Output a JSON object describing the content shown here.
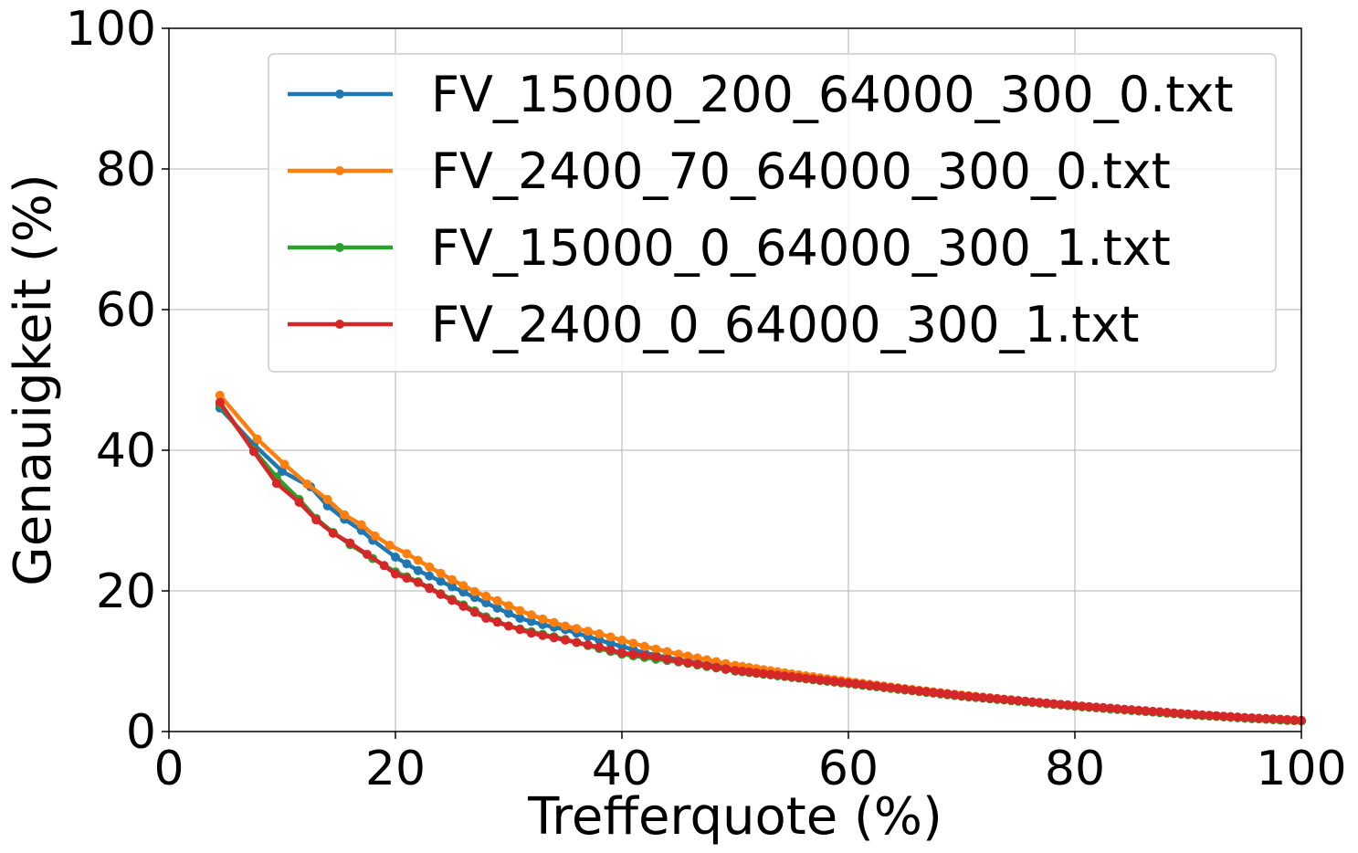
{
  "chart_data": {
    "type": "line",
    "title": "",
    "xlabel": "Trefferquote (%)",
    "ylabel": "Genauigkeit (%)",
    "xlim": [
      0,
      100
    ],
    "ylim": [
      0,
      100
    ],
    "xticks": [
      0,
      20,
      40,
      60,
      80,
      100
    ],
    "yticks": [
      0,
      20,
      40,
      60,
      80,
      100
    ],
    "xtick_labels": [
      "0",
      "20",
      "40",
      "60",
      "80",
      "100"
    ],
    "ytick_labels": [
      "0",
      "20",
      "40",
      "60",
      "80",
      "100"
    ],
    "grid": true,
    "legend_position": "top-right",
    "series": [
      {
        "name": "FV_15000_200_64000_300_0.txt",
        "color": "#1f77b4",
        "anchors": [
          [
            4.5,
            46.0
          ],
          [
            7.5,
            40.8
          ],
          [
            10,
            37.0
          ],
          [
            12.5,
            34.8
          ],
          [
            14,
            32.1
          ],
          [
            15.5,
            30.2
          ],
          [
            17,
            28.6
          ],
          [
            18,
            27.2
          ],
          [
            20,
            24.8
          ],
          [
            22,
            22.9
          ],
          [
            25,
            20.6
          ],
          [
            28,
            18.3
          ],
          [
            30,
            16.8
          ],
          [
            31,
            16.1
          ],
          [
            33,
            15.2
          ],
          [
            35,
            14.5
          ],
          [
            38,
            13.0
          ],
          [
            40,
            12.1
          ],
          [
            42,
            11.2
          ],
          [
            45,
            10.2
          ],
          [
            50,
            8.9
          ],
          [
            55,
            8.0
          ],
          [
            60,
            7.0
          ],
          [
            65,
            6.0
          ],
          [
            70,
            5.1
          ],
          [
            75,
            4.4
          ],
          [
            80,
            3.6
          ],
          [
            85,
            3.0
          ],
          [
            90,
            2.4
          ],
          [
            95,
            1.9
          ],
          [
            100,
            1.5
          ]
        ]
      },
      {
        "name": "FV_2400_70_64000_300_0.txt",
        "color": "#ff7f0e",
        "anchors": [
          [
            4.5,
            47.8
          ],
          [
            7.8,
            41.6
          ],
          [
            10.2,
            38.0
          ],
          [
            12.2,
            35.2
          ],
          [
            14,
            33.0
          ],
          [
            15.5,
            30.8
          ],
          [
            17,
            29.4
          ],
          [
            18.2,
            27.8
          ],
          [
            19.5,
            26.5
          ],
          [
            21,
            25.3
          ],
          [
            23,
            23.4
          ],
          [
            25,
            21.6
          ],
          [
            27,
            19.9
          ],
          [
            29,
            18.6
          ],
          [
            31,
            17.2
          ],
          [
            33,
            16.0
          ],
          [
            35,
            15.0
          ],
          [
            38,
            13.9
          ],
          [
            40,
            13.0
          ],
          [
            42,
            12.1
          ],
          [
            45,
            11.0
          ],
          [
            50,
            9.4
          ],
          [
            55,
            8.2
          ],
          [
            60,
            7.1
          ],
          [
            65,
            6.1
          ],
          [
            70,
            5.2
          ],
          [
            75,
            4.4
          ],
          [
            80,
            3.6
          ],
          [
            85,
            3.0
          ],
          [
            90,
            2.4
          ],
          [
            95,
            1.9
          ],
          [
            100,
            1.5
          ]
        ]
      },
      {
        "name": "FV_15000_0_64000_300_1.txt",
        "color": "#2ca02c",
        "anchors": [
          [
            4.5,
            46.5
          ],
          [
            7.5,
            40.0
          ],
          [
            9.5,
            36.2
          ],
          [
            11.5,
            33.0
          ],
          [
            13,
            30.3
          ],
          [
            14.5,
            28.3
          ],
          [
            16,
            26.6
          ],
          [
            18,
            24.6
          ],
          [
            20,
            22.7
          ],
          [
            22,
            21.3
          ],
          [
            24,
            19.6
          ],
          [
            26,
            18.0
          ],
          [
            28,
            16.3
          ],
          [
            30,
            15.0
          ],
          [
            32,
            14.2
          ],
          [
            35,
            13.1
          ],
          [
            38,
            11.8
          ],
          [
            40,
            11.0
          ],
          [
            43,
            10.3
          ],
          [
            45,
            9.9
          ],
          [
            50,
            8.6
          ],
          [
            55,
            7.7
          ],
          [
            60,
            6.8
          ],
          [
            65,
            5.9
          ],
          [
            70,
            5.0
          ],
          [
            75,
            4.3
          ],
          [
            80,
            3.6
          ],
          [
            85,
            3.0
          ],
          [
            90,
            2.4
          ],
          [
            95,
            1.9
          ],
          [
            100,
            1.5
          ]
        ]
      },
      {
        "name": "FV_2400_0_64000_300_1.txt",
        "color": "#d62728",
        "anchors": [
          [
            4.5,
            46.8
          ],
          [
            7.5,
            39.8
          ],
          [
            9.5,
            35.3
          ],
          [
            11.5,
            32.6
          ],
          [
            13,
            30.1
          ],
          [
            14.5,
            28.2
          ],
          [
            16,
            26.8
          ],
          [
            17.5,
            25.2
          ],
          [
            19,
            23.6
          ],
          [
            20,
            22.4
          ],
          [
            22,
            21.2
          ],
          [
            24,
            19.5
          ],
          [
            26,
            17.8
          ],
          [
            28,
            16.1
          ],
          [
            30,
            15.0
          ],
          [
            32,
            14.0
          ],
          [
            35,
            13.0
          ],
          [
            38,
            12.0
          ],
          [
            40,
            11.2
          ],
          [
            43,
            10.6
          ],
          [
            45,
            10.0
          ],
          [
            50,
            8.7
          ],
          [
            55,
            7.8
          ],
          [
            60,
            6.9
          ],
          [
            65,
            6.0
          ],
          [
            70,
            5.1
          ],
          [
            75,
            4.4
          ],
          [
            80,
            3.7
          ],
          [
            85,
            3.1
          ],
          [
            90,
            2.5
          ],
          [
            95,
            2.0
          ],
          [
            100,
            1.6
          ]
        ]
      }
    ]
  }
}
